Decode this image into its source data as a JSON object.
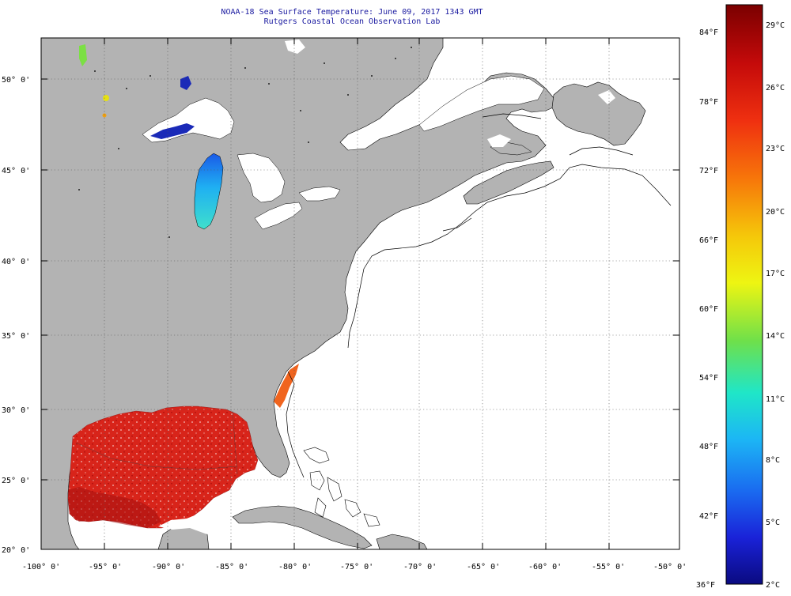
{
  "title": "NOAA-18 Sea Surface Temperature:  June 09, 2017 1343 GMT",
  "subtitle": "Rutgers Coastal Ocean Observation Lab",
  "lat_labels": [
    "50° 0'",
    "45° 0'",
    "40° 0'",
    "35° 0'",
    "30° 0'",
    "25° 0'",
    "20° 0'"
  ],
  "lon_labels": [
    "-100° 0'",
    "-95° 0'",
    "-90° 0'",
    "-85° 0'",
    "-80° 0'",
    "-75° 0'",
    "-70° 0'",
    "-65° 0'",
    "-60° 0'",
    "-55° 0'",
    "-50° 0'"
  ],
  "map_extent": {
    "lon": [
      -100,
      -50
    ],
    "lat": [
      20,
      52.5
    ]
  },
  "colorbar": {
    "f_labels": [
      "84°F",
      "78°F",
      "72°F",
      "66°F",
      "60°F",
      "54°F",
      "48°F",
      "42°F",
      "36°F"
    ],
    "c_labels": [
      "29°C",
      "26°C",
      "23°C",
      "20°C",
      "17°C",
      "14°C",
      "11°C",
      "8°C",
      "5°C",
      "2°C"
    ],
    "colors": [
      "#8b0000",
      "#d51c0c",
      "#f0500c",
      "#f59e06",
      "#f2f10a",
      "#77e33a",
      "#1fe3c2",
      "#1fa8f5",
      "#1c4ff0",
      "#1a14d8",
      "#0b0a8a"
    ]
  },
  "colors": {
    "land": "#b3b3b3",
    "ocean": "#ffffff",
    "sst_gulf": "#d9261a",
    "sst_michigan": "#2fb8ee"
  }
}
